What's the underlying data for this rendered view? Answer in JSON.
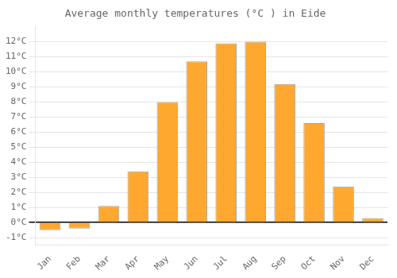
{
  "chart_data": {
    "type": "bar",
    "title": "Average monthly temperatures (°C ) in Eide",
    "categories": [
      "Jan",
      "Feb",
      "Mar",
      "Apr",
      "May",
      "Jun",
      "Jul",
      "Aug",
      "Sep",
      "Oct",
      "Nov",
      "Dec"
    ],
    "values": [
      -0.5,
      -0.4,
      1.1,
      3.4,
      8.0,
      10.7,
      11.9,
      12.0,
      9.2,
      6.6,
      2.4,
      0.3
    ],
    "color": "#FFA830",
    "ylim": [
      -1.5,
      13.0
    ],
    "yticks": [
      {
        "value": -1,
        "label": "-1°C"
      },
      {
        "value": 0,
        "label": "0°C"
      },
      {
        "value": 1,
        "label": "1°C"
      },
      {
        "value": 2,
        "label": "2°C"
      },
      {
        "value": 3,
        "label": "3°C"
      },
      {
        "value": 4,
        "label": "4°C"
      },
      {
        "value": 5,
        "label": "5°C"
      },
      {
        "value": 6,
        "label": "6°C"
      },
      {
        "value": 7,
        "label": "7°C"
      },
      {
        "value": 8,
        "label": "8°C"
      },
      {
        "value": 9,
        "label": "9°C"
      },
      {
        "value": 10,
        "label": "10°C"
      },
      {
        "value": 11,
        "label": "11°C"
      },
      {
        "value": 12,
        "label": "12°C"
      }
    ],
    "grid": true
  }
}
